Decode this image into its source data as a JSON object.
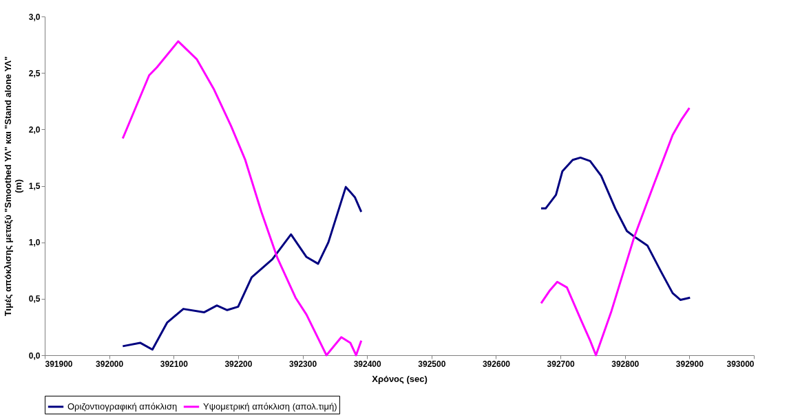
{
  "chart_data": {
    "type": "line",
    "xlabel": "Χρόνος (sec)",
    "ylabel": "Τιμές απόκλισης μεταξύ \"Smoothed ΥΛ\" και \"Stand alone ΥΛ\"\n(m)",
    "xlim": [
      391900,
      393000
    ],
    "xticks": [
      391900,
      392000,
      392100,
      392200,
      392300,
      392400,
      392500,
      392600,
      392700,
      392800,
      392900,
      393000
    ],
    "ylim": [
      0,
      3
    ],
    "yticks": [
      {
        "value": 0,
        "label": "0,0"
      },
      {
        "value": 0.5,
        "label": "0,5"
      },
      {
        "value": 1,
        "label": "1,0"
      },
      {
        "value": 1.5,
        "label": "1,5"
      },
      {
        "value": 2,
        "label": "2,0"
      },
      {
        "value": 2.5,
        "label": "2,5"
      },
      {
        "value": 3,
        "label": "3,0"
      }
    ],
    "grid": false,
    "legend": "bottom",
    "marker": "none",
    "line_style": "solid",
    "series": [
      {
        "name": "Οριζοντιογραφική απόκλιση",
        "color": "#000080",
        "x": [
          392021,
          392048,
          392067,
          392090,
          392115,
          392147,
          392167,
          392183,
          392200,
          392221,
          392253,
          392282,
          392306,
          392324,
          392340,
          392367,
          392381,
          392391,
          392500,
          392670,
          392677,
          392693,
          392703,
          392719,
          392731,
          392746,
          392763,
          392785,
          392803,
          392817,
          392835,
          392856,
          392874,
          392886,
          392901
        ],
        "values": [
          0.08,
          0.11,
          0.05,
          0.29,
          0.41,
          0.38,
          0.44,
          0.4,
          0.43,
          0.69,
          0.85,
          1.07,
          0.87,
          0.81,
          1.0,
          1.49,
          1.4,
          1.27,
          null,
          1.3,
          1.3,
          1.42,
          1.63,
          1.73,
          1.75,
          1.72,
          1.59,
          1.3,
          1.1,
          1.04,
          0.97,
          0.74,
          0.55,
          0.49,
          0.51
        ]
      },
      {
        "name": "Υψομετρική απόκλιση (απολ.τιμή)",
        "color": "#ff00ff",
        "x": [
          392021,
          392062,
          392074,
          392107,
          392136,
          392162,
          392189,
          392211,
          392236,
          392261,
          392289,
          392306,
          392337,
          392360,
          392374,
          392383,
          392391,
          392500,
          392670,
          392683,
          392695,
          392710,
          392732,
          392746,
          392755,
          392779,
          392814,
          392846,
          392874,
          392888,
          392900
        ],
        "values": [
          1.92,
          2.48,
          2.55,
          2.78,
          2.62,
          2.36,
          2.03,
          1.73,
          1.27,
          0.86,
          0.51,
          0.36,
          0.0,
          0.16,
          0.11,
          0.0,
          0.13,
          null,
          0.46,
          0.57,
          0.65,
          0.6,
          0.31,
          0.13,
          0.0,
          0.39,
          1.04,
          1.53,
          1.95,
          2.09,
          2.19
        ]
      }
    ]
  }
}
